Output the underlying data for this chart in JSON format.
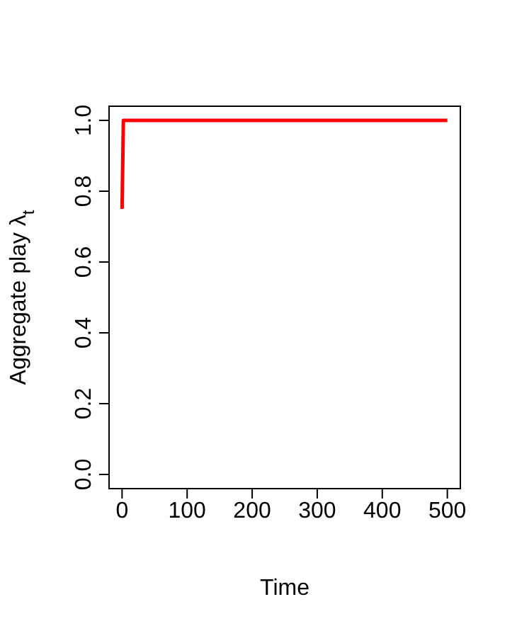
{
  "chart_data": {
    "type": "line",
    "xlabel": "Time",
    "ylabel": "Aggregate play λ$_{t}$",
    "x": [
      0,
      2,
      500
    ],
    "series": [
      {
        "color": "#ff0000",
        "values": [
          0.75,
          1.0,
          1.0
        ]
      }
    ],
    "xlim": [
      -20,
      520
    ],
    "xticks": [
      0,
      100,
      200,
      300,
      400,
      500
    ],
    "ylim": [
      -0.04,
      1.04
    ],
    "yticks": [
      {
        "value": 0,
        "label": "0.0"
      },
      {
        "value": 0.2,
        "label": "0.2"
      },
      {
        "value": 0.4,
        "label": "0.4"
      },
      {
        "value": 0.6,
        "label": "0.6"
      },
      {
        "value": 0.8,
        "label": "0.8"
      },
      {
        "value": 1,
        "label": "1.0"
      }
    ],
    "grid": false,
    "legend": false,
    "marker": "none",
    "line_style": "solid"
  }
}
